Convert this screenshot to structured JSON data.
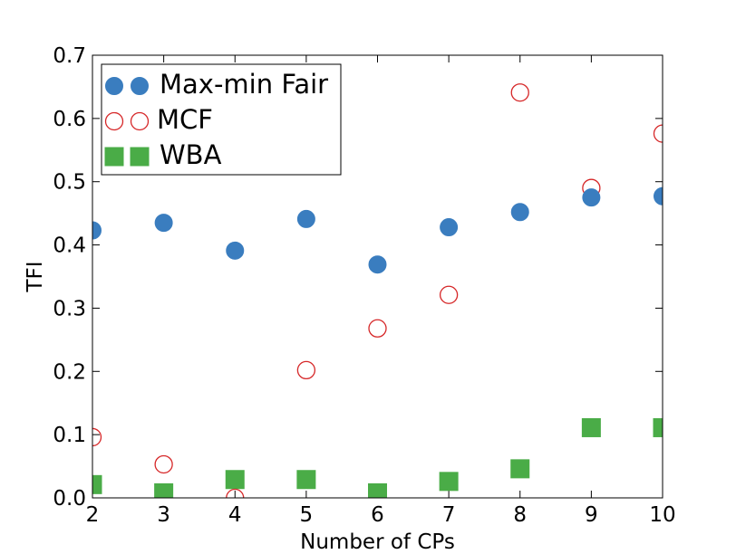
{
  "chart_data": {
    "type": "scatter",
    "title": "",
    "xlabel": "Number of CPs",
    "ylabel": "TFI",
    "xlim": [
      2,
      10
    ],
    "ylim": [
      0,
      0.7
    ],
    "xticks": [
      2,
      3,
      4,
      5,
      6,
      7,
      8,
      9,
      10
    ],
    "yticks": [
      0.0,
      0.1,
      0.2,
      0.3,
      0.4,
      0.5,
      0.6,
      0.7
    ],
    "grid": false,
    "legend_position": "top-left",
    "x": [
      2,
      3,
      4,
      5,
      6,
      7,
      8,
      9,
      10
    ],
    "series": [
      {
        "name": "Max-min Fair",
        "marker": "filled-circle",
        "color": "#3a7dbf",
        "values": [
          0.423,
          0.435,
          0.391,
          0.441,
          0.369,
          0.428,
          0.452,
          0.475,
          0.477
        ]
      },
      {
        "name": "MCF",
        "marker": "open-circle",
        "color": "#d62728",
        "values": [
          0.096,
          0.053,
          0.0,
          0.202,
          0.268,
          0.321,
          0.641,
          0.49,
          0.576
        ]
      },
      {
        "name": "WBA",
        "marker": "filled-square",
        "color": "#4aac47",
        "values": [
          0.021,
          0.008,
          0.029,
          0.029,
          0.008,
          0.026,
          0.046,
          0.111,
          0.111
        ]
      }
    ]
  }
}
